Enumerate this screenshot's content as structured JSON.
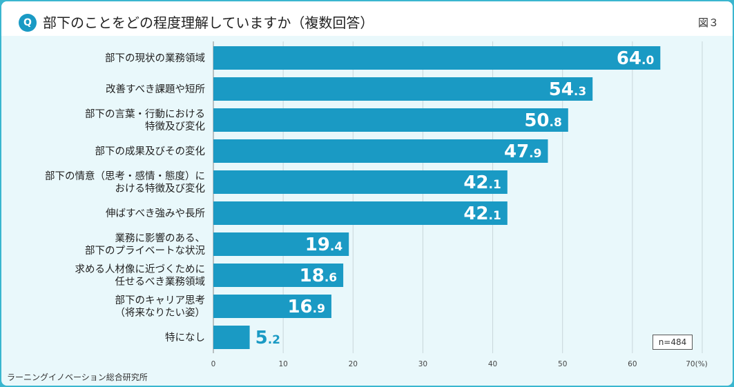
{
  "header": {
    "q_badge": "Q",
    "title": "部下のことをどの程度理解していますか（複数回答）",
    "figure_label": "図３"
  },
  "footer": {
    "source": "ラーニングイノベーション総合研究所",
    "sample_size": "n=484"
  },
  "colors": {
    "bar": "#1a9ac4",
    "background": "#e9f8fb",
    "border": "#3ab6cf"
  },
  "chart_data": {
    "type": "bar",
    "orientation": "horizontal",
    "categories": [
      [
        "部下の現状の業務領域"
      ],
      [
        "改善すべき課題や短所"
      ],
      [
        "部下の言葉・行動における",
        "特徴及び変化"
      ],
      [
        "部下の成果及びその変化"
      ],
      [
        "部下の情意（思考・感情・態度）に",
        "おける特徴及び変化"
      ],
      [
        "伸ばすべき強みや長所"
      ],
      [
        "業務に影響のある、",
        "部下のプライベートな状況"
      ],
      [
        "求める人材像に近づくために",
        "任せるべき業務領域"
      ],
      [
        "部下のキャリア思考",
        "（将来なりたい姿）"
      ],
      [
        "特になし"
      ]
    ],
    "values": [
      64.0,
      54.3,
      50.8,
      47.9,
      42.1,
      42.1,
      19.4,
      18.6,
      16.9,
      5.2
    ],
    "value_labels": [
      [
        "64",
        ".0"
      ],
      [
        "54",
        ".3"
      ],
      [
        "50",
        ".8"
      ],
      [
        "47",
        ".9"
      ],
      [
        "42",
        ".1"
      ],
      [
        "42",
        ".1"
      ],
      [
        "19",
        ".4"
      ],
      [
        "18",
        ".6"
      ],
      [
        "16",
        ".9"
      ],
      [
        "5",
        ".2"
      ]
    ],
    "xlim": [
      0,
      70
    ],
    "x_ticks": [
      "0",
      "10",
      "20",
      "30",
      "40",
      "50",
      "60",
      "70(%)"
    ],
    "grid": true
  }
}
